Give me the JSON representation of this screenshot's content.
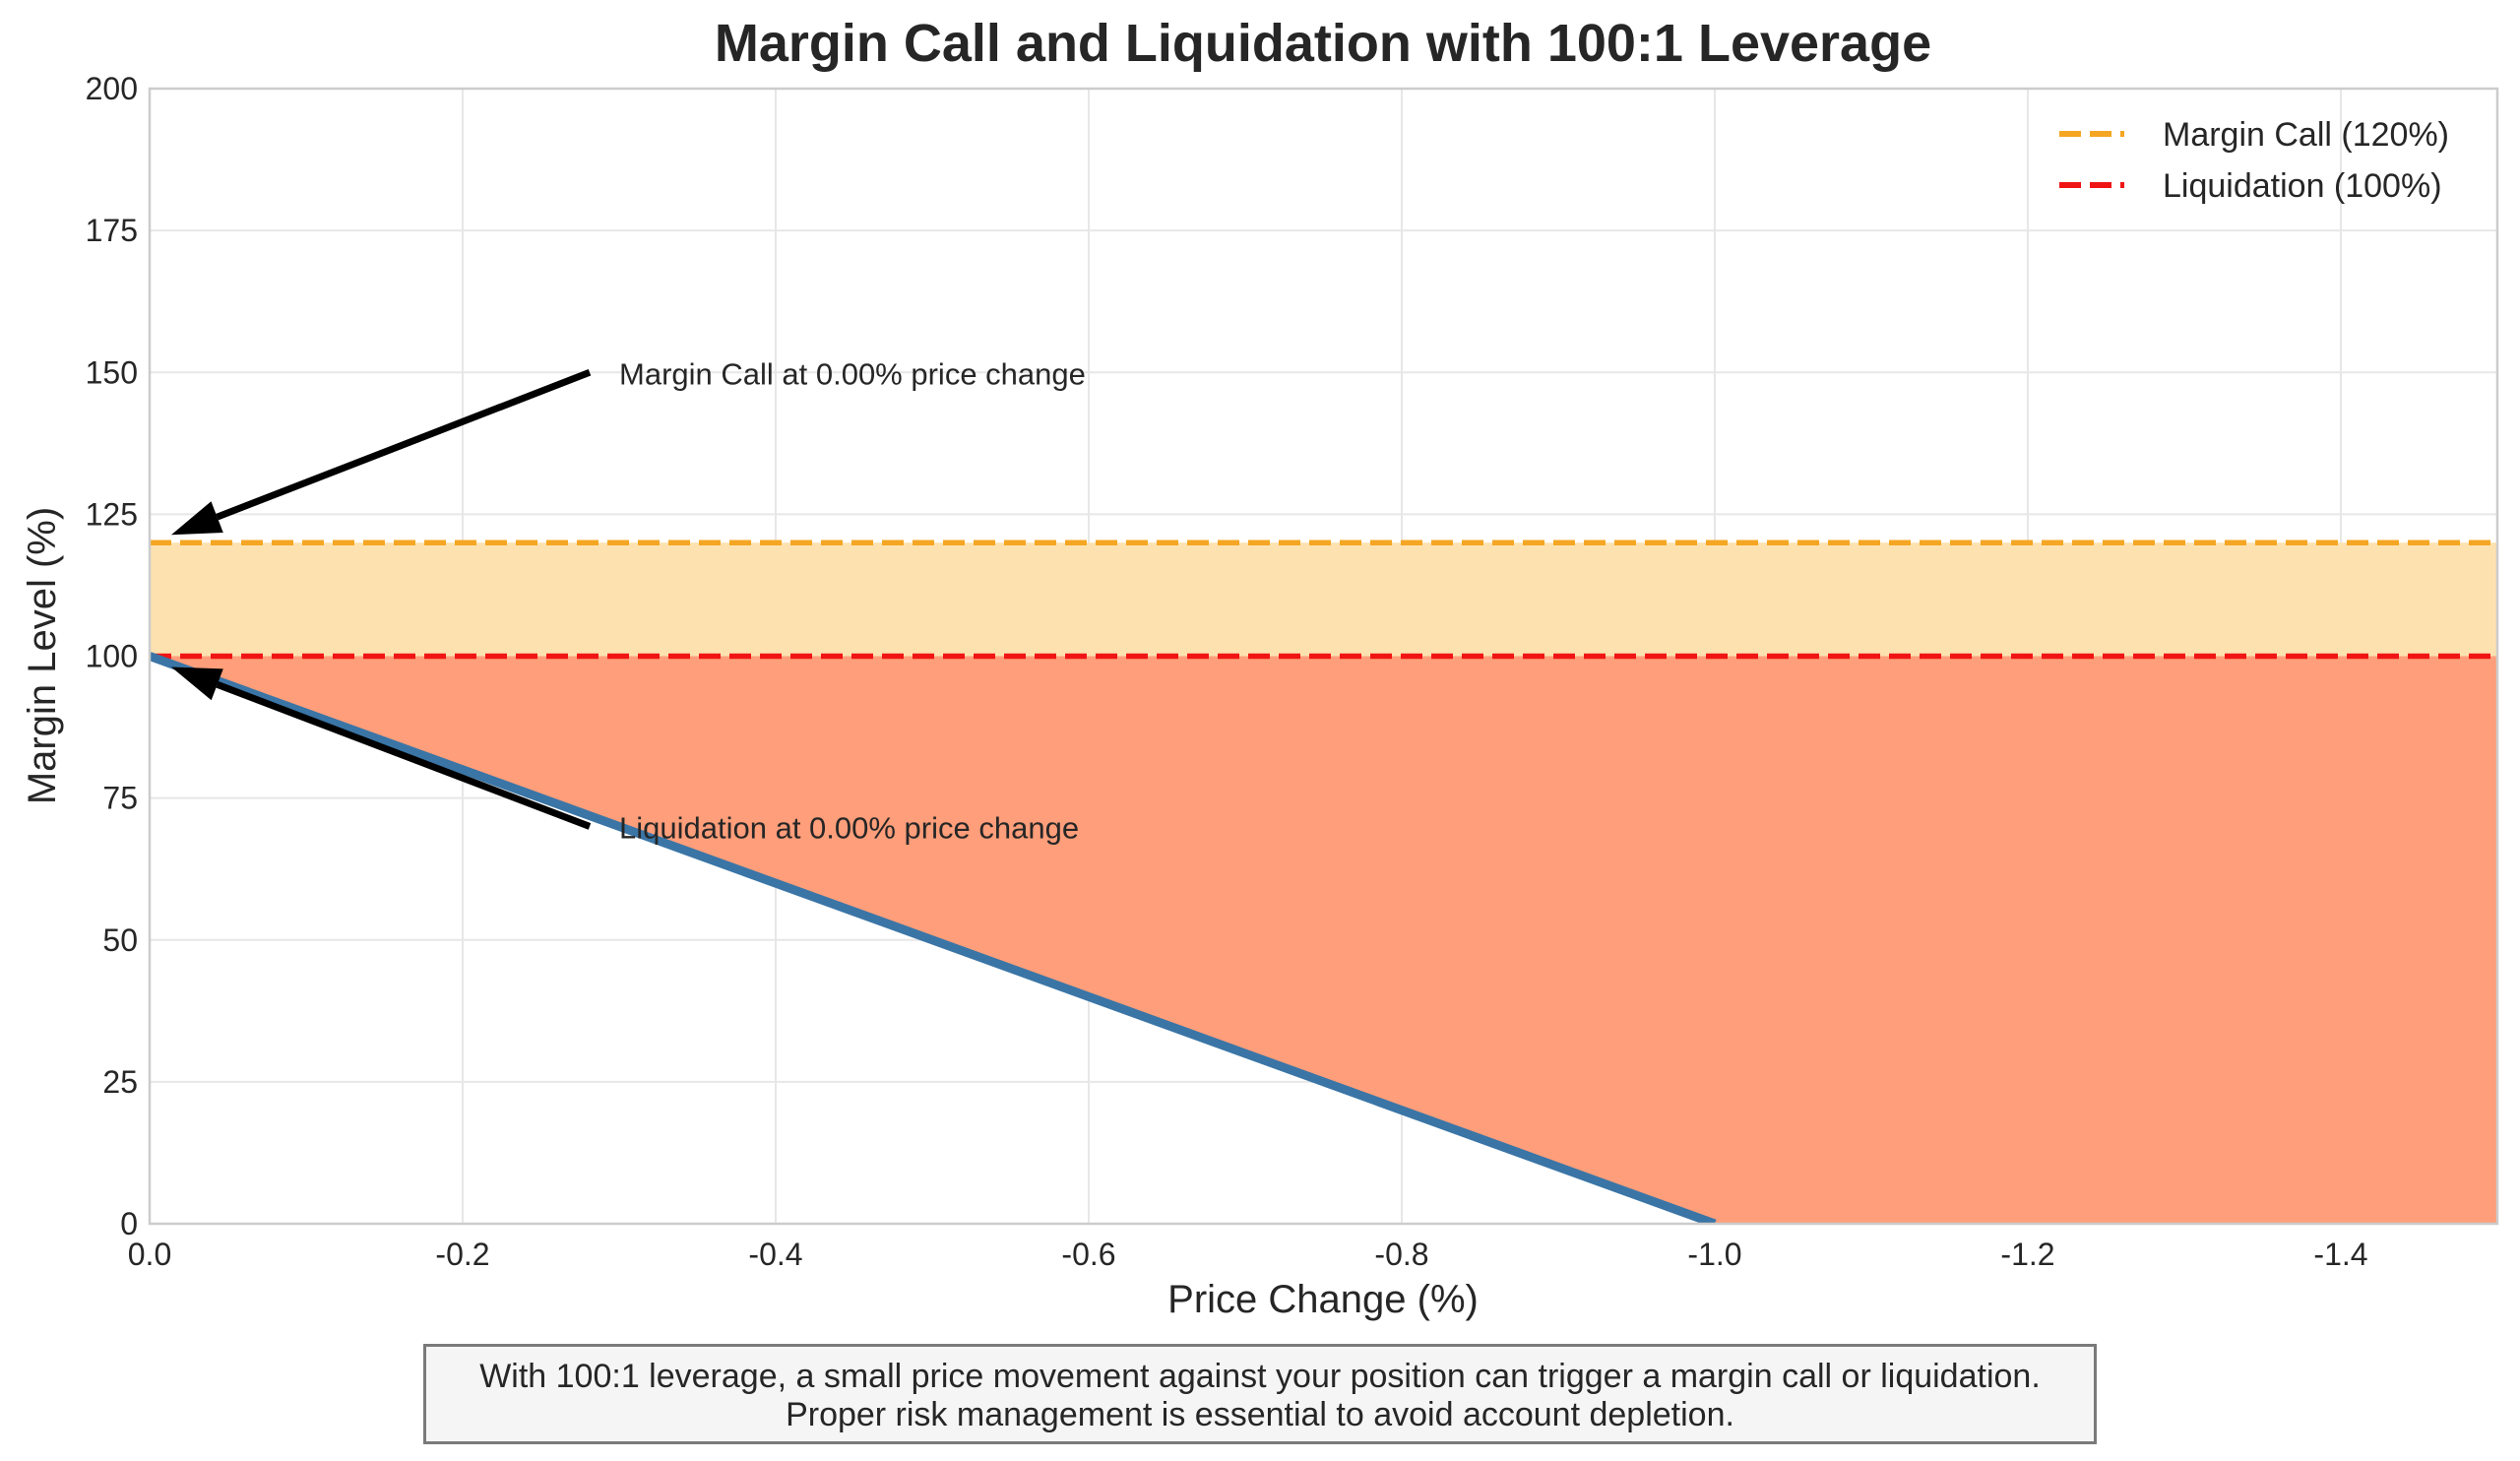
{
  "chart_data": {
    "type": "line",
    "title": "Margin Call and Liquidation with 100:1 Leverage",
    "xlabel": "Price Change (%)",
    "ylabel": "Margin Level (%)",
    "xlim": [
      0.0,
      -1.5
    ],
    "ylim": [
      0,
      200
    ],
    "grid": true,
    "x_ticks": [
      0.0,
      -0.2,
      -0.4,
      -0.6,
      -0.8,
      -1.0,
      -1.2,
      -1.4
    ],
    "x_tick_labels": [
      "0.0",
      "-0.2",
      "-0.4",
      "-0.6",
      "-0.8",
      "-1.0",
      "-1.2",
      "-1.4"
    ],
    "y_ticks": [
      0,
      25,
      50,
      75,
      100,
      125,
      150,
      175,
      200
    ],
    "y_tick_labels": [
      "0",
      "25",
      "50",
      "75",
      "100",
      "125",
      "150",
      "175",
      "200"
    ],
    "series": [
      {
        "name": "Margin Level",
        "color": "#3a75a6",
        "x": [
          0.0,
          -1.0
        ],
        "y": [
          100,
          0
        ]
      }
    ],
    "hlines": [
      {
        "name": "Margin Call (120%)",
        "y": 120,
        "color": "#f5a623",
        "style": "dashed"
      },
      {
        "name": "Liquidation (100%)",
        "y": 100,
        "color": "#f01414",
        "style": "dashed"
      }
    ],
    "bands": [
      {
        "name": "warning-zone",
        "y_from": 100,
        "y_to": 120,
        "color": "#fde2b0"
      },
      {
        "name": "liquidation-zone",
        "y_to": 100,
        "color": "#ff9e7a"
      }
    ],
    "legend": {
      "position": "top-right",
      "entries": [
        {
          "label": "Margin Call (120%)",
          "color": "#f5a623"
        },
        {
          "label": "Liquidation (100%)",
          "color": "#f01414"
        }
      ]
    },
    "annotations": [
      {
        "name": "margin-call-annotation",
        "text": "Margin Call at 0.00% price change",
        "point": [
          0.0,
          120
        ],
        "text_at": [
          -0.3,
          150
        ]
      },
      {
        "name": "liquidation-annotation",
        "text": "Liquidation at 0.00% price change",
        "point": [
          0.0,
          100
        ],
        "text_at": [
          -0.3,
          70
        ]
      }
    ]
  },
  "footnote": {
    "line1": "With 100:1 leverage, a small price movement against your position can trigger a margin call or liquidation.",
    "line2": "Proper risk management is essential to avoid account depletion."
  }
}
